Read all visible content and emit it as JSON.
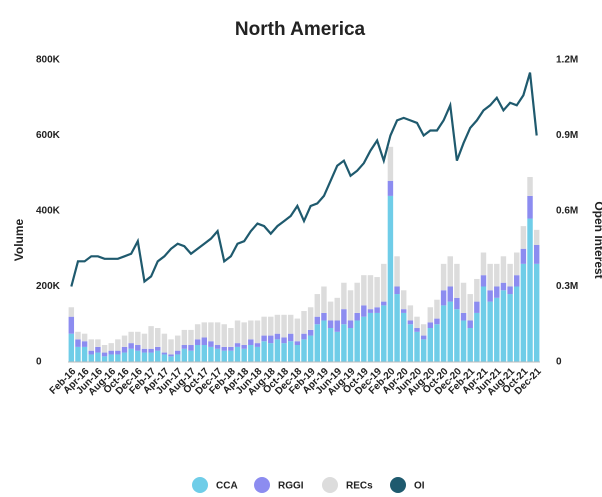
{
  "chart_data": {
    "type": "bar",
    "title": "North America",
    "y_label": "Volume",
    "y2_label": "Open Interest",
    "categories": [
      "Feb-16",
      null,
      "Apr-16",
      null,
      "Jun-16",
      null,
      "Aug-16",
      null,
      "Oct-16",
      null,
      "Dec-16",
      null,
      "Feb-17",
      null,
      "Apr-17",
      null,
      "Jun-17",
      null,
      "Aug-17",
      null,
      "Oct-17",
      null,
      "Dec-17",
      null,
      "Feb-18",
      null,
      "Apr-18",
      null,
      "Jun-18",
      null,
      "Aug-18",
      null,
      "Oct-18",
      null,
      "Dec-18",
      null,
      "Feb-19",
      null,
      "Apr-19",
      null,
      "Jun-19",
      null,
      "Aug-19",
      null,
      "Oct-19",
      null,
      "Dec-19",
      null,
      "Feb-20",
      null,
      "Apr-20",
      null,
      "Jun-20",
      null,
      "Aug-20",
      null,
      "Oct-20",
      null,
      "Dec-20",
      null,
      "Feb-21",
      null,
      "Apr-21",
      null,
      "Jun-21",
      null,
      "Aug-21",
      null,
      "Oct-21",
      null,
      "Dec-21"
    ],
    "series": [
      {
        "name": "CCA",
        "color": "#6fcde8",
        "values": [
          75,
          40,
          40,
          20,
          25,
          15,
          20,
          20,
          25,
          35,
          30,
          25,
          25,
          30,
          20,
          15,
          20,
          35,
          30,
          45,
          45,
          40,
          35,
          30,
          30,
          40,
          35,
          45,
          40,
          55,
          50,
          60,
          50,
          55,
          45,
          60,
          70,
          100,
          110,
          90,
          80,
          100,
          90,
          110,
          120,
          130,
          130,
          150,
          440,
          180,
          130,
          100,
          80,
          60,
          90,
          100,
          150,
          160,
          140,
          110,
          90,
          130,
          200,
          160,
          170,
          190,
          180,
          200,
          260,
          380,
          260
        ]
      },
      {
        "name": "RGGI",
        "color": "#8c8cf0",
        "values": [
          45,
          20,
          15,
          10,
          15,
          10,
          10,
          10,
          15,
          15,
          15,
          10,
          10,
          10,
          5,
          5,
          10,
          10,
          15,
          15,
          20,
          15,
          10,
          10,
          10,
          10,
          10,
          15,
          10,
          15,
          20,
          15,
          15,
          20,
          10,
          15,
          15,
          20,
          20,
          20,
          30,
          40,
          20,
          20,
          30,
          10,
          15,
          10,
          40,
          20,
          10,
          10,
          10,
          10,
          15,
          15,
          40,
          40,
          30,
          20,
          20,
          30,
          30,
          30,
          30,
          20,
          20,
          30,
          40,
          60,
          50
        ]
      },
      {
        "name": "RECs",
        "color": "#dcdcdc",
        "values": [
          25,
          20,
          20,
          30,
          20,
          20,
          20,
          30,
          30,
          30,
          35,
          40,
          60,
          50,
          50,
          40,
          40,
          40,
          40,
          40,
          40,
          50,
          60,
          60,
          50,
          60,
          60,
          50,
          60,
          50,
          50,
          50,
          60,
          50,
          60,
          60,
          60,
          60,
          70,
          50,
          60,
          70,
          80,
          80,
          80,
          90,
          80,
          100,
          90,
          80,
          50,
          40,
          30,
          30,
          40,
          50,
          70,
          80,
          90,
          80,
          70,
          60,
          60,
          70,
          60,
          70,
          60,
          60,
          60,
          50,
          40
        ]
      },
      {
        "name": "OI",
        "color": "#1f5a6e",
        "type": "line",
        "axis": "y2",
        "values": [
          300000,
          400000,
          400000,
          420000,
          420000,
          410000,
          410000,
          410000,
          420000,
          430000,
          480000,
          320000,
          340000,
          400000,
          420000,
          450000,
          470000,
          460000,
          430000,
          450000,
          470000,
          490000,
          520000,
          400000,
          420000,
          470000,
          480000,
          520000,
          550000,
          540000,
          510000,
          540000,
          560000,
          580000,
          620000,
          560000,
          620000,
          630000,
          660000,
          720000,
          780000,
          800000,
          740000,
          760000,
          790000,
          840000,
          880000,
          800000,
          900000,
          960000,
          970000,
          960000,
          950000,
          900000,
          920000,
          920000,
          960000,
          1020000,
          800000,
          870000,
          930000,
          960000,
          1000000,
          1020000,
          1050000,
          1000000,
          1030000,
          1020000,
          1060000,
          1150000,
          900000
        ]
      }
    ],
    "ylim": [
      0,
      800000
    ],
    "yticks": [
      0,
      {
        "value": 200000,
        "label": "200K"
      },
      {
        "value": 400000,
        "label": "400K"
      },
      {
        "value": 600000,
        "label": "600K"
      },
      {
        "value": 800000,
        "label": "800K"
      }
    ],
    "y2lim": [
      0,
      1200000
    ],
    "y2ticks": [
      0,
      {
        "value": 300000,
        "label": "0.3M"
      },
      {
        "value": 600000,
        "label": "0.6M"
      },
      {
        "value": 900000,
        "label": "0.9M"
      },
      {
        "value": 1200000,
        "label": "1.2M"
      }
    ]
  }
}
